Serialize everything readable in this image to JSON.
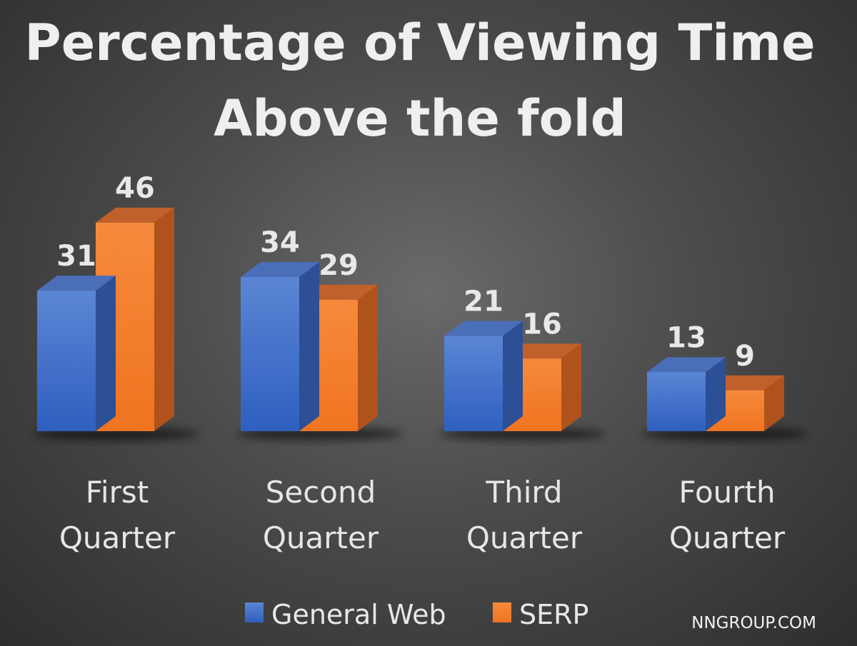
{
  "chart_data": {
    "type": "bar",
    "title_lines": [
      "Percentage of Viewing Time",
      "Above the fold"
    ],
    "categories": [
      [
        "First",
        "Quarter"
      ],
      [
        "Second",
        "Quarter"
      ],
      [
        "Third",
        "Quarter"
      ],
      [
        "Fourth",
        "Quarter"
      ]
    ],
    "series": [
      {
        "name": "General Web",
        "values": [
          31,
          34,
          21,
          13
        ],
        "color": "#4472c4"
      },
      {
        "name": "SERP",
        "values": [
          46,
          29,
          16,
          9
        ],
        "color": "#ed7d31"
      }
    ],
    "ylim": [
      0,
      50
    ],
    "grid": false,
    "legend_position": "bottom",
    "style": "3d-column"
  },
  "watermark": "NNGROUP.COM"
}
